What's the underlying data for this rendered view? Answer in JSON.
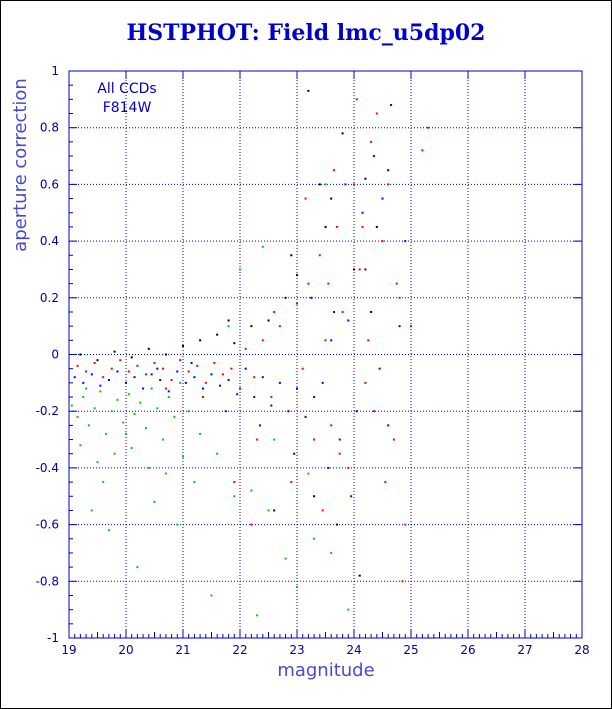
{
  "chart_data": {
    "type": "scatter",
    "title": "HSTPHOT: Field lmc_u5dp02",
    "xlabel": "magnitude",
    "ylabel": "aperture correction",
    "xlim": [
      19,
      28
    ],
    "ylim": [
      -1,
      1
    ],
    "xticks": [
      19,
      20,
      21,
      22,
      23,
      24,
      25,
      26,
      27,
      28
    ],
    "yticks": [
      -1,
      -0.8,
      -0.6,
      -0.4,
      -0.2,
      0,
      0.2,
      0.4,
      0.6,
      0.8,
      1
    ],
    "grid": true,
    "annotations": [
      "All CCDs",
      "F814W"
    ],
    "colors": {
      "axis": "#0000cc",
      "grid": "#0000cc"
    },
    "series": [
      {
        "color": "#ff0000",
        "points": [
          [
            19.15,
            -0.04
          ],
          [
            19.3,
            -0.06
          ],
          [
            19.45,
            -0.03
          ],
          [
            19.6,
            -0.08
          ],
          [
            19.75,
            -0.05
          ],
          [
            19.9,
            -0.02
          ],
          [
            20.05,
            -0.06
          ],
          [
            20.2,
            -0.04
          ],
          [
            20.35,
            -0.07
          ],
          [
            20.5,
            -0.03
          ],
          [
            20.65,
            -0.05
          ],
          [
            20.8,
            -0.09
          ],
          [
            20.95,
            -0.02
          ],
          [
            21.1,
            -0.06
          ],
          [
            21.25,
            -0.04
          ],
          [
            21.4,
            -0.1
          ],
          [
            21.55,
            -0.03
          ],
          [
            21.7,
            -0.07
          ],
          [
            21.85,
            -0.05
          ],
          [
            22.0,
            -0.12
          ],
          [
            22.1,
            0.02
          ],
          [
            22.25,
            -0.08
          ],
          [
            22.4,
            0.05
          ],
          [
            22.55,
            -0.15
          ],
          [
            22.7,
            0.1
          ],
          [
            22.85,
            -0.2
          ],
          [
            23.0,
            0.18
          ],
          [
            23.1,
            -0.05
          ],
          [
            23.2,
            0.25
          ],
          [
            23.3,
            -0.3
          ],
          [
            23.4,
            0.35
          ],
          [
            23.5,
            0.05
          ],
          [
            23.6,
            -0.25
          ],
          [
            23.7,
            0.45
          ],
          [
            23.8,
            0.15
          ],
          [
            23.9,
            -0.4
          ],
          [
            24.0,
            0.6
          ],
          [
            24.1,
            0.3
          ],
          [
            24.2,
            -0.1
          ],
          [
            24.3,
            0.75
          ],
          [
            24.4,
            0.85
          ],
          [
            24.5,
            0.4
          ],
          [
            24.6,
            0.6
          ],
          [
            24.7,
            -0.3
          ],
          [
            24.8,
            0.2
          ],
          [
            24.9,
            -0.6
          ],
          [
            25.0,
            0.1
          ],
          [
            25.2,
            0.72
          ],
          [
            25.3,
            0.8
          ],
          [
            22.3,
            -0.3
          ],
          [
            22.6,
            0.15
          ],
          [
            23.45,
            -0.55
          ],
          [
            23.75,
            -0.35
          ],
          [
            24.25,
            0.05
          ],
          [
            24.55,
            -0.45
          ],
          [
            24.85,
            -0.8
          ],
          [
            21.9,
            -0.45
          ],
          [
            22.2,
            -0.6
          ],
          [
            23.15,
            0.55
          ],
          [
            23.65,
            0.65
          ],
          [
            24.05,
            0.9
          ],
          [
            24.35,
            -0.2
          ],
          [
            20.7,
            -0.12
          ],
          [
            21.35,
            -0.15
          ],
          [
            22.9,
            -0.45
          ],
          [
            23.55,
            0.25
          ],
          [
            24.15,
            0.45
          ],
          [
            24.75,
            0.25
          ]
        ]
      },
      {
        "color": "#0000ff",
        "points": [
          [
            19.1,
            -0.08
          ],
          [
            19.25,
            -0.1
          ],
          [
            19.4,
            -0.07
          ],
          [
            19.55,
            -0.11
          ],
          [
            19.7,
            -0.09
          ],
          [
            19.85,
            -0.06
          ],
          [
            20.0,
            -0.1
          ],
          [
            20.15,
            -0.08
          ],
          [
            20.3,
            -0.12
          ],
          [
            20.45,
            -0.07
          ],
          [
            20.6,
            -0.09
          ],
          [
            20.75,
            -0.13
          ],
          [
            20.9,
            -0.06
          ],
          [
            21.05,
            -0.1
          ],
          [
            21.2,
            -0.08
          ],
          [
            21.35,
            -0.12
          ],
          [
            21.5,
            -0.07
          ],
          [
            21.65,
            -0.11
          ],
          [
            21.8,
            -0.09
          ],
          [
            21.95,
            -0.14
          ],
          [
            22.1,
            -0.05
          ],
          [
            22.25,
            -0.15
          ],
          [
            22.4,
            -0.08
          ],
          [
            22.55,
            -0.18
          ],
          [
            22.7,
            -0.1
          ],
          [
            22.85,
            -0.2
          ],
          [
            23.0,
            -0.12
          ],
          [
            23.15,
            -0.22
          ],
          [
            23.3,
            -0.15
          ],
          [
            23.45,
            -0.1
          ],
          [
            23.6,
            0.05
          ],
          [
            23.75,
            -0.3
          ],
          [
            23.9,
            0.12
          ],
          [
            24.05,
            -0.2
          ],
          [
            24.2,
            0.3
          ],
          [
            24.35,
            0.7
          ],
          [
            24.5,
            0.55
          ],
          [
            24.65,
            0.88
          ],
          [
            24.8,
            0.1
          ],
          [
            23.25,
            0.2
          ],
          [
            23.55,
            -0.4
          ],
          [
            23.85,
            0.6
          ],
          [
            24.15,
            0.5
          ],
          [
            24.45,
            -0.05
          ],
          [
            22.95,
            -0.35
          ],
          [
            22.35,
            -0.25
          ],
          [
            21.75,
            -0.2
          ],
          [
            24.6,
            -0.25
          ],
          [
            24.9,
            0.4
          ],
          [
            23.65,
            0.15
          ],
          [
            23.95,
            -0.5
          ],
          [
            21.15,
            -0.03
          ],
          [
            20.55,
            -0.05
          ]
        ]
      },
      {
        "color": "#00cc00",
        "points": [
          [
            19.05,
            -0.18
          ],
          [
            19.15,
            -0.22
          ],
          [
            19.25,
            -0.15
          ],
          [
            19.35,
            -0.25
          ],
          [
            19.45,
            -0.19
          ],
          [
            19.55,
            -0.13
          ],
          [
            19.65,
            -0.28
          ],
          [
            19.75,
            -0.2
          ],
          [
            19.85,
            -0.16
          ],
          [
            19.95,
            -0.24
          ],
          [
            20.05,
            -0.14
          ],
          [
            20.15,
            -0.21
          ],
          [
            20.25,
            -0.17
          ],
          [
            20.35,
            -0.26
          ],
          [
            20.45,
            -0.12
          ],
          [
            20.55,
            -0.19
          ],
          [
            20.65,
            -0.3
          ],
          [
            20.75,
            -0.15
          ],
          [
            20.85,
            -0.22
          ],
          [
            20.95,
            -0.1
          ],
          [
            19.2,
            -0.32
          ],
          [
            19.5,
            -0.38
          ],
          [
            19.8,
            -0.35
          ],
          [
            20.1,
            -0.33
          ],
          [
            20.4,
            -0.4
          ],
          [
            20.7,
            -0.42
          ],
          [
            21.0,
            -0.36
          ],
          [
            21.3,
            -0.28
          ],
          [
            21.6,
            -0.35
          ],
          [
            21.9,
            -0.5
          ],
          [
            22.2,
            -0.48
          ],
          [
            22.5,
            -0.55
          ],
          [
            22.8,
            -0.72
          ],
          [
            23.0,
            -0.82
          ],
          [
            23.3,
            -0.65
          ],
          [
            23.6,
            -0.7
          ],
          [
            23.9,
            -0.9
          ],
          [
            19.4,
            -0.55
          ],
          [
            19.7,
            -0.62
          ],
          [
            20.2,
            -0.75
          ],
          [
            20.5,
            -0.52
          ],
          [
            20.9,
            -0.6
          ],
          [
            21.2,
            -0.45
          ],
          [
            19.6,
            -0.45
          ],
          [
            21.5,
            -0.85
          ],
          [
            22.0,
            0.3
          ],
          [
            22.4,
            0.38
          ],
          [
            21.8,
            0.1
          ],
          [
            23.5,
            0.6
          ],
          [
            22.3,
            -0.92
          ],
          [
            20.0,
            -0.28
          ],
          [
            19.3,
            -0.12
          ],
          [
            21.1,
            -0.2
          ],
          [
            22.6,
            -0.3
          ],
          [
            23.2,
            -0.42
          ]
        ]
      },
      {
        "color": "#000000",
        "points": [
          [
            19.2,
            0.0
          ],
          [
            19.5,
            -0.02
          ],
          [
            19.8,
            0.01
          ],
          [
            20.1,
            -0.01
          ],
          [
            20.4,
            0.02
          ],
          [
            20.7,
            0.0
          ],
          [
            21.0,
            0.03
          ],
          [
            21.3,
            0.05
          ],
          [
            21.6,
            0.07
          ],
          [
            21.9,
            0.04
          ],
          [
            22.2,
            0.1
          ],
          [
            22.5,
            0.12
          ],
          [
            22.8,
            0.2
          ],
          [
            23.0,
            0.28
          ],
          [
            23.2,
            0.93
          ],
          [
            23.4,
            0.6
          ],
          [
            23.6,
            0.55
          ],
          [
            23.8,
            0.78
          ],
          [
            24.0,
            0.3
          ],
          [
            24.2,
            0.62
          ],
          [
            24.4,
            0.45
          ],
          [
            24.6,
            0.65
          ],
          [
            23.3,
            -0.5
          ],
          [
            23.7,
            -0.6
          ],
          [
            24.1,
            -0.78
          ],
          [
            22.6,
            -0.55
          ],
          [
            21.8,
            0.12
          ],
          [
            22.9,
            0.35
          ],
          [
            23.5,
            0.45
          ],
          [
            24.3,
            0.15
          ]
        ]
      }
    ]
  }
}
